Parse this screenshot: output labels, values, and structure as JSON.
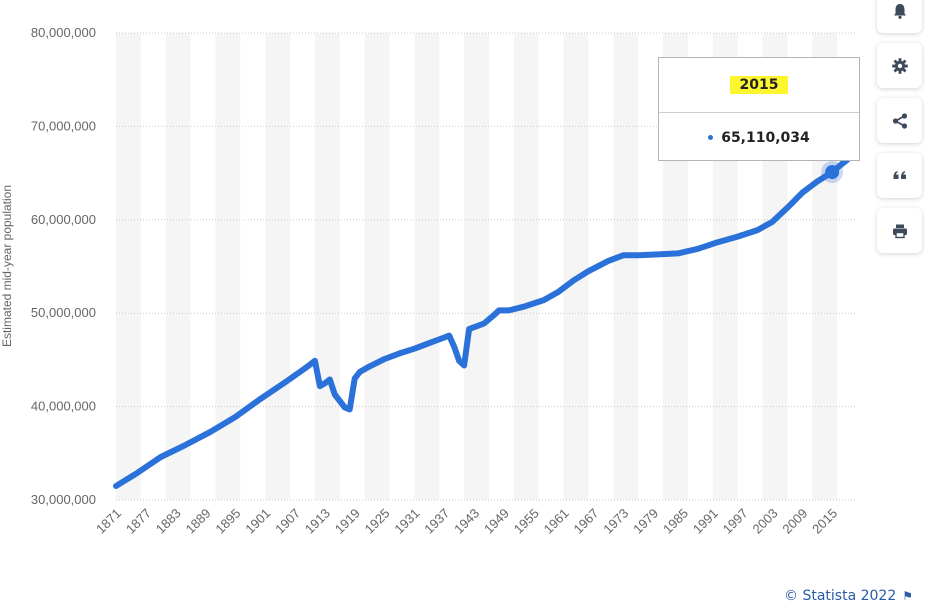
{
  "chart_data": {
    "type": "line",
    "title": "",
    "xlabel": "",
    "ylabel": "Estimated mid-year population",
    "ylim": [
      30000000,
      80000000
    ],
    "xlim": [
      1871,
      2020
    ],
    "y_ticks": [
      "30,000,000",
      "40,000,000",
      "50,000,000",
      "60,000,000",
      "70,000,000",
      "80,000,000"
    ],
    "x_ticks": [
      "1871",
      "1877",
      "1883",
      "1889",
      "1895",
      "1901",
      "1907",
      "1913",
      "1919",
      "1925",
      "1931",
      "1937",
      "1943",
      "1949",
      "1955",
      "1961",
      "1967",
      "1973",
      "1979",
      "1985",
      "1991",
      "1997",
      "2003",
      "2009",
      "2015"
    ],
    "grid": true,
    "series": [
      {
        "color": "#2a71d9",
        "points": [
          [
            1871,
            31500000
          ],
          [
            1875,
            32800000
          ],
          [
            1880,
            34600000
          ],
          [
            1885,
            35900000
          ],
          [
            1890,
            37300000
          ],
          [
            1895,
            38900000
          ],
          [
            1900,
            40800000
          ],
          [
            1905,
            42600000
          ],
          [
            1909,
            44100000
          ],
          [
            1910,
            44500000
          ],
          [
            1911,
            44900000
          ],
          [
            1912,
            42200000
          ],
          [
            1913,
            42500000
          ],
          [
            1914,
            42900000
          ],
          [
            1915,
            41300000
          ],
          [
            1916,
            40600000
          ],
          [
            1917,
            39900000
          ],
          [
            1918,
            39700000
          ],
          [
            1919,
            43000000
          ],
          [
            1920,
            43700000
          ],
          [
            1922,
            44300000
          ],
          [
            1925,
            45100000
          ],
          [
            1928,
            45700000
          ],
          [
            1931,
            46200000
          ],
          [
            1934,
            46800000
          ],
          [
            1937,
            47400000
          ],
          [
            1938,
            47600000
          ],
          [
            1939,
            46400000
          ],
          [
            1940,
            44900000
          ],
          [
            1941,
            44400000
          ],
          [
            1942,
            48300000
          ],
          [
            1945,
            48900000
          ],
          [
            1947,
            49800000
          ],
          [
            1948,
            50300000
          ],
          [
            1950,
            50300000
          ],
          [
            1953,
            50700000
          ],
          [
            1957,
            51400000
          ],
          [
            1960,
            52300000
          ],
          [
            1963,
            53500000
          ],
          [
            1966,
            54500000
          ],
          [
            1970,
            55600000
          ],
          [
            1973,
            56200000
          ],
          [
            1976,
            56200000
          ],
          [
            1980,
            56300000
          ],
          [
            1984,
            56400000
          ],
          [
            1988,
            56900000
          ],
          [
            1992,
            57600000
          ],
          [
            1996,
            58200000
          ],
          [
            2000,
            58900000
          ],
          [
            2003,
            59800000
          ],
          [
            2006,
            61300000
          ],
          [
            2009,
            62900000
          ],
          [
            2012,
            64100000
          ],
          [
            2015,
            65110034
          ],
          [
            2017,
            66000000
          ],
          [
            2018,
            66400000
          ]
        ]
      }
    ],
    "highlight": {
      "x": 2015,
      "y": 65110034
    }
  },
  "tooltip": {
    "year": "2015",
    "value": "65,110,034"
  },
  "side_buttons": [
    {
      "icon": "bell-icon"
    },
    {
      "icon": "gear-icon"
    },
    {
      "icon": "share-icon"
    },
    {
      "icon": "quote-icon"
    },
    {
      "icon": "print-icon"
    }
  ],
  "credit": {
    "text": "© Statista 2022"
  },
  "colors": {
    "accent": "#2a71d9",
    "band": "#f5f5f5",
    "grid": "#cccccc",
    "tooltip_highlight": "#fdf52e"
  }
}
